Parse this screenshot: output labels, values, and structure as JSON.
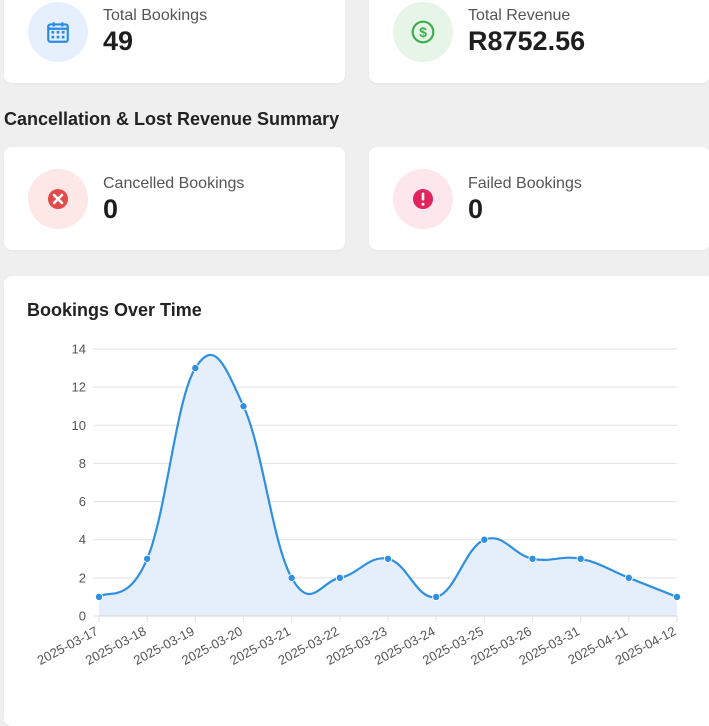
{
  "stats": {
    "total_bookings": {
      "label": "Total Bookings",
      "value": "49",
      "icon": "calendar-icon",
      "color": "#2a8be6"
    },
    "total_revenue": {
      "label": "Total Revenue",
      "value": "R8752.56",
      "icon": "dollar-icon",
      "color": "#3cae4e"
    }
  },
  "cancellation": {
    "title": "Cancellation & Lost Revenue Summary",
    "cancelled": {
      "label": "Cancelled Bookings",
      "value": "0",
      "icon": "x-circle-icon",
      "color": "#e54a4a"
    },
    "failed": {
      "label": "Failed Bookings",
      "value": "0",
      "icon": "exclamation-circle-icon",
      "color": "#e0245e"
    }
  },
  "chart_data": {
    "type": "line",
    "title": "Bookings Over Time",
    "categories": [
      "2025-03-17",
      "2025-03-18",
      "2025-03-19",
      "2025-03-20",
      "2025-03-21",
      "2025-03-22",
      "2025-03-23",
      "2025-03-24",
      "2025-03-25",
      "2025-03-26",
      "2025-03-31",
      "2025-04-11",
      "2025-04-12"
    ],
    "values": [
      1,
      3,
      13,
      11,
      2,
      2,
      3,
      1,
      4,
      3,
      3,
      2,
      1
    ],
    "ylim": [
      0,
      14
    ],
    "yticks": [
      "0",
      "2",
      "4",
      "6",
      "8",
      "10",
      "12",
      "14"
    ],
    "grid": true,
    "line_color": "#2f8fe0",
    "fill_color": "#e4effb",
    "xlabel": "",
    "ylabel": ""
  }
}
